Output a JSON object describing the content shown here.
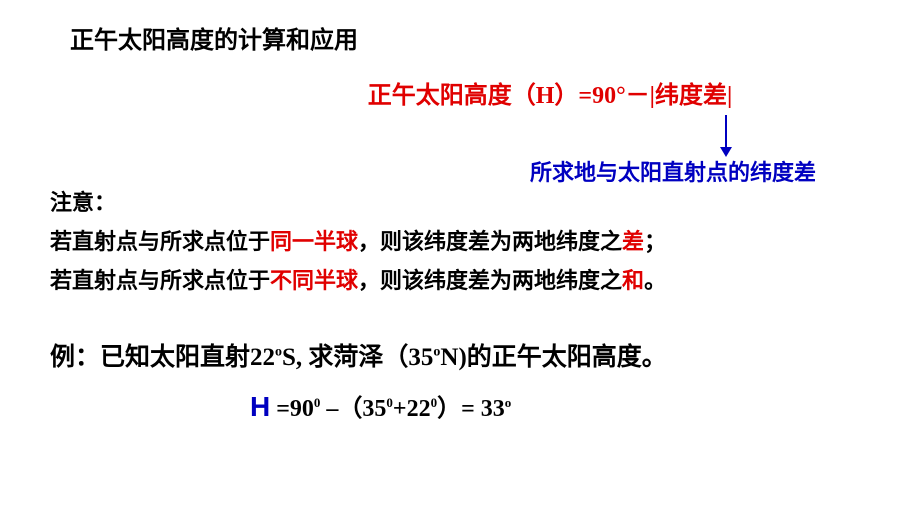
{
  "title": "正午太阳高度的计算和应用",
  "formula": {
    "text": "正午太阳高度（H）=90°－|纬度差|",
    "color": "#e00000",
    "fontsize": 24
  },
  "arrow_label": "所求地与太阳直射点的纬度差",
  "arrow_color": "#0000c0",
  "note": {
    "header": "注意：",
    "line1_p1": "若直射点与所求点位于",
    "line1_red": "同一半球",
    "line1_p2": "，则该纬度差为两地纬度之",
    "line1_red2": "差",
    "line1_p3": "；",
    "line2_p1": "若直射点与所求点位于",
    "line2_red": "不同半球",
    "line2_p2": "，则该纬度差为两地纬度之",
    "line2_red2": "和",
    "line2_p3": "。"
  },
  "example": {
    "prefix": "例：已知太阳直射22",
    "deg1": "o",
    "lat1": "S, 求菏泽（35",
    "deg2": "o",
    "lat2": "N)的正午太阳高度。"
  },
  "solution": {
    "H": "H",
    "eq": " =90",
    "sup0a": "0",
    "minus": "  –（35",
    "sup0b": "0",
    "plus": "+22",
    "sup0c": "0",
    "close": "）=  33",
    "supd": "o"
  },
  "colors": {
    "red": "#e00000",
    "blue": "#0000c0",
    "black": "#000000",
    "background": "#ffffff"
  },
  "typography": {
    "title_fontsize": 24,
    "body_fontsize": 22,
    "example_fontsize": 25,
    "font_family": "SimSun"
  }
}
